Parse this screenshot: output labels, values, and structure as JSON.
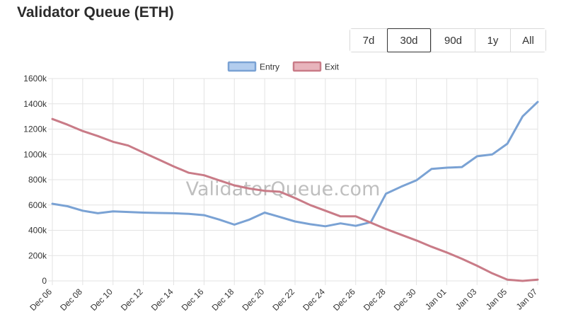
{
  "header": {
    "title": "Validator Queue (ETH)"
  },
  "range_selector": {
    "options": [
      "7d",
      "30d",
      "90d",
      "1y",
      "All"
    ],
    "selected": "30d"
  },
  "watermark": "ValidatorQueue.com",
  "chart_data": {
    "type": "line",
    "title": "",
    "xlabel": "",
    "ylabel": "",
    "legend_position": "top",
    "grid": true,
    "x": [
      "Dec 06",
      "Dec 07",
      "Dec 08",
      "Dec 09",
      "Dec 10",
      "Dec 11",
      "Dec 12",
      "Dec 13",
      "Dec 14",
      "Dec 15",
      "Dec 16",
      "Dec 17",
      "Dec 18",
      "Dec 19",
      "Dec 20",
      "Dec 21",
      "Dec 22",
      "Dec 23",
      "Dec 24",
      "Dec 25",
      "Dec 26",
      "Dec 27",
      "Dec 28",
      "Dec 29",
      "Dec 30",
      "Dec 31",
      "Jan 01",
      "Jan 02",
      "Jan 03",
      "Jan 04",
      "Jan 05",
      "Jan 06",
      "Jan 07"
    ],
    "tick_labels": [
      "Dec 06",
      "Dec 08",
      "Dec 10",
      "Dec 12",
      "Dec 14",
      "Dec 16",
      "Dec 18",
      "Dec 20",
      "Dec 22",
      "Dec 24",
      "Dec 26",
      "Dec 28",
      "Dec 30",
      "Jan 01",
      "Jan 03",
      "Jan 05",
      "Jan 07"
    ],
    "y_ticks": [
      "0",
      "200k",
      "400k",
      "600k",
      "800k",
      "1000k",
      "1200k",
      "1400k",
      "1600k"
    ],
    "ylim": [
      0,
      1600000
    ],
    "series": [
      {
        "name": "Entry",
        "color": "#7aa2d4",
        "fill": "#b3cdee",
        "values": [
          610000,
          590000,
          555000,
          535000,
          550000,
          545000,
          540000,
          537000,
          535000,
          530000,
          520000,
          485000,
          445000,
          485000,
          540000,
          505000,
          470000,
          448000,
          432000,
          455000,
          435000,
          465000,
          690000,
          745000,
          795000,
          885000,
          895000,
          900000,
          985000,
          1000000,
          1085000,
          1300000,
          1415000
        ]
      },
      {
        "name": "Exit",
        "color": "#c97b87",
        "fill": "#e8b4bc",
        "values": [
          1280000,
          1235000,
          1185000,
          1145000,
          1100000,
          1070000,
          1015000,
          960000,
          905000,
          855000,
          835000,
          795000,
          755000,
          730000,
          712000,
          705000,
          655000,
          600000,
          555000,
          510000,
          510000,
          460000,
          410000,
          365000,
          320000,
          270000,
          225000,
          175000,
          120000,
          60000,
          10000,
          0,
          10000
        ]
      }
    ]
  }
}
